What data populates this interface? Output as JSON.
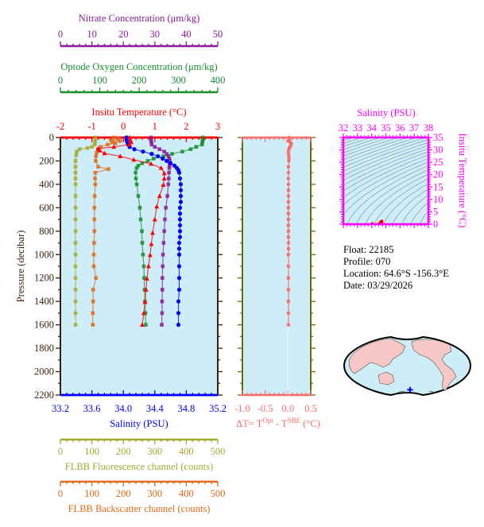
{
  "colors": {
    "salinity": "#0000ff",
    "temperature": "#ff0000",
    "oxygen": "#1a8c2e",
    "nitrate": "#8b1a9a",
    "fluorescence": "#a8a830",
    "backscatter": "#e06a1a",
    "delta_t": "#ff6b6b",
    "ts": "#ff00ff",
    "pressure": "#3a1f0a",
    "plot_bg": "#cdeef8",
    "land": "#f8c8c8",
    "float_marker": "#0000ff"
  },
  "info": {
    "float": "Float:  22185",
    "profile": "Profile:  070",
    "location": "Location:  64.6°S  -156.3°E",
    "date": "Date:  03/29/2026"
  },
  "chart_data": [
    {
      "type": "line",
      "name": "profile",
      "ylabel": "Pressure (decibar)",
      "yaxis": {
        "min": 0,
        "max": 2200,
        "reversed": true,
        "ticks": [
          "0",
          "200",
          "400",
          "600",
          "800",
          "1000",
          "1200",
          "1400",
          "1600",
          "1800",
          "2000",
          "2200"
        ]
      },
      "axes": {
        "nitrate": {
          "title": "Nitrate Concentration (μm/kg)",
          "min": 0,
          "max": 50,
          "ticks": [
            "0",
            "10",
            "20",
            "30",
            "40",
            "50"
          ],
          "position": "top"
        },
        "oxygen": {
          "title": "Optode Oxygen Concentration (μm/kg)",
          "min": 0,
          "max": 400,
          "ticks": [
            "0",
            "100",
            "200",
            "300",
            "400"
          ],
          "position": "top"
        },
        "temperature": {
          "title": "Insitu Temperature (°C)",
          "min": -2,
          "max": 3,
          "ticks": [
            "-2",
            "-1",
            "0",
            "1",
            "2",
            "3"
          ],
          "position": "top"
        },
        "salinity": {
          "title": "Salinity (PSU)",
          "min": 33.2,
          "max": 35.2,
          "ticks": [
            "33.2",
            "33.6",
            "34.0",
            "34.4",
            "34.8",
            "35.2"
          ],
          "position": "bottom"
        },
        "fluorescence": {
          "title": "FLBB Fluorescence channel (counts)",
          "min": 0,
          "max": 500,
          "ticks": [
            "0",
            "100",
            "200",
            "300",
            "400",
            "500"
          ],
          "position": "bottom"
        },
        "backscatter": {
          "title": "FLBB Backscatter channel (counts)",
          "min": 0,
          "max": 500,
          "ticks": [
            "0",
            "100",
            "200",
            "300",
            "400",
            "500"
          ],
          "position": "bottom"
        }
      },
      "series": [
        {
          "key": "fluorescence",
          "marker": "square",
          "p": [
            0,
            20,
            40,
            60,
            80,
            90,
            100,
            120,
            150,
            200,
            250,
            300,
            350,
            400,
            500,
            600,
            700,
            800,
            900,
            1000,
            1100,
            1200,
            1300,
            1400,
            1500,
            1600
          ],
          "values": [
            111,
            111,
            110,
            109,
            100,
            86,
            61,
            52,
            50,
            48,
            48,
            48,
            48,
            48,
            48,
            48,
            48,
            48,
            48,
            48,
            48,
            48,
            48,
            48,
            48,
            48
          ]
        },
        {
          "key": "backscatter",
          "marker": "square",
          "p": [
            0,
            10,
            20,
            30,
            40,
            50,
            60,
            80,
            100,
            130,
            160,
            200,
            250,
            270,
            300,
            350,
            400,
            500,
            600,
            700,
            800,
            900,
            1000,
            1100,
            1200,
            1300,
            1400,
            1500,
            1600
          ],
          "values": [
            170,
            185,
            160,
            190,
            165,
            175,
            150,
            128,
            119,
            115,
            113,
            112,
            120,
            153,
            111,
            110,
            111,
            109,
            108,
            108,
            108,
            107,
            106,
            106,
            113,
            104,
            104,
            103,
            103
          ]
        },
        {
          "key": "oxygen",
          "marker": "square",
          "p": [
            0,
            20,
            40,
            60,
            80,
            100,
            120,
            140,
            160,
            180,
            200,
            220,
            240,
            260,
            300,
            350,
            400,
            500,
            600,
            700,
            800,
            900,
            1000,
            1100,
            1200,
            1300,
            1400,
            1500,
            1600
          ],
          "values": [
            362,
            362,
            361,
            360,
            345,
            331,
            310,
            284,
            262,
            237,
            222,
            208,
            198,
            194,
            191,
            192,
            194,
            198,
            202,
            204,
            207,
            208,
            210,
            212,
            213,
            214,
            215,
            216,
            217
          ]
        },
        {
          "key": "nitrate",
          "marker": "square",
          "p": [
            0,
            20,
            40,
            60,
            80,
            100,
            120,
            140,
            160,
            180,
            200,
            220,
            240,
            260,
            300,
            350,
            400,
            500,
            600,
            700,
            800,
            900,
            1000,
            1100,
            1200,
            1300,
            1400,
            1500,
            1600
          ],
          "values": [
            28.8,
            28.8,
            28.9,
            29.0,
            30.0,
            31.5,
            33.0,
            33.8,
            34.3,
            34.6,
            34.7,
            34.7,
            34.7,
            34.6,
            34.5,
            34.4,
            34.3,
            34.0,
            33.5,
            33.2,
            33.0,
            32.8,
            32.6,
            32.5,
            32.4,
            32.4,
            32.3,
            32.3,
            32.2
          ]
        },
        {
          "key": "salinity",
          "marker": "circle",
          "p": [
            0,
            20,
            40,
            60,
            80,
            100,
            120,
            140,
            160,
            180,
            200,
            220,
            240,
            260,
            280,
            300,
            350,
            400,
            450,
            500,
            550,
            600,
            650,
            700,
            750,
            800,
            850,
            900,
            950,
            1000,
            1100,
            1200,
            1300,
            1400,
            1500,
            1600
          ],
          "values": [
            34.04,
            34.04,
            34.05,
            34.06,
            34.08,
            34.14,
            34.25,
            34.36,
            34.44,
            34.5,
            34.55,
            34.6,
            34.65,
            34.68,
            34.7,
            34.71,
            34.72,
            34.73,
            34.73,
            34.73,
            34.73,
            34.72,
            34.72,
            34.72,
            34.72,
            34.72,
            34.72,
            34.71,
            34.71,
            34.71,
            34.71,
            34.71,
            34.71,
            34.7,
            34.7,
            34.7
          ]
        },
        {
          "key": "temperature",
          "marker": "triangle",
          "p": [
            0,
            20,
            40,
            60,
            80,
            95,
            110,
            135,
            160,
            190,
            225,
            260,
            305,
            350,
            405,
            500,
            590,
            700,
            815,
            910,
            1005,
            1100,
            1205,
            1300,
            1405,
            1500,
            1600
          ],
          "values": [
            0.2,
            0.22,
            0.25,
            0.2,
            -0.3,
            -0.8,
            -0.75,
            -0.6,
            -0.1,
            0.33,
            0.88,
            1.2,
            1.3,
            1.3,
            1.27,
            1.15,
            1.06,
            1.0,
            0.93,
            0.89,
            0.85,
            0.8,
            0.75,
            0.72,
            0.69,
            0.65,
            0.6
          ]
        }
      ]
    },
    {
      "type": "line",
      "name": "delta-t",
      "xlabel": {
        "prefix": "ΔT= T",
        "sup1": "Opt",
        "mid": " - T",
        "sup2": "SBE",
        "suffix": " (°C)"
      },
      "xaxis": {
        "min": -1.0,
        "max": 0.5,
        "ticks": [
          "-1.0",
          "-0.5",
          "0.0",
          "0.5"
        ]
      },
      "p": [
        0,
        10,
        20,
        30,
        40,
        50,
        60,
        70,
        80,
        90,
        100,
        120,
        140,
        160,
        180,
        200,
        250,
        300,
        350,
        400,
        450,
        500,
        550,
        600,
        650,
        700,
        750,
        800,
        850,
        900,
        950,
        1000,
        1100,
        1200,
        1300,
        1400,
        1500,
        1600
      ],
      "values": [
        0.03,
        0.03,
        0.03,
        0.0,
        0.05,
        0.07,
        0.07,
        0.06,
        0.04,
        0.03,
        0.02,
        0.01,
        0.01,
        0.02,
        0.02,
        0.02,
        0.01,
        0.01,
        0.01,
        0.01,
        0.01,
        0.01,
        0.01,
        0.01,
        0.01,
        0.01,
        0.01,
        0.01,
        0.01,
        0.01,
        0.01,
        0.01,
        0.01,
        0.01,
        0.01,
        0.01,
        0.01,
        0.01
      ]
    },
    {
      "type": "scatter",
      "name": "ts-diagram",
      "xlabel": "Salinity (PSU)",
      "ylabel": "Insitu Temperature (°C)",
      "xaxis": {
        "min": 32,
        "max": 38,
        "ticks": [
          "32",
          "33",
          "34",
          "35",
          "36",
          "37",
          "38"
        ]
      },
      "yaxis": {
        "min": 0,
        "max": 35,
        "ticks": [
          "0",
          "5",
          "10",
          "15",
          "20",
          "25",
          "30",
          "35"
        ]
      },
      "density_contours": true,
      "points_from": "profile salinity vs temperature"
    }
  ]
}
